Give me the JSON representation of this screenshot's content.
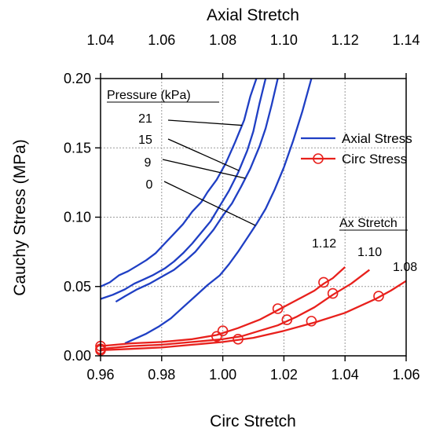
{
  "chart_data": {
    "type": "line",
    "xlabel": "Circ Stretch",
    "x2label": "Axial Stretch",
    "ylabel": "Cauchy Stress (MPa)",
    "xlim": [
      0.96,
      1.06
    ],
    "x2lim": [
      1.04,
      1.14
    ],
    "ylim": [
      0.0,
      0.2
    ],
    "xticks": [
      0.96,
      0.98,
      1.0,
      1.02,
      1.04,
      1.06
    ],
    "x2ticks": [
      1.04,
      1.06,
      1.08,
      1.1,
      1.12,
      1.14
    ],
    "yticks": [
      0.0,
      0.05,
      0.1,
      0.15,
      0.2
    ],
    "xtick_labels": [
      "0.96",
      "0.98",
      "1.00",
      "1.02",
      "1.04",
      "1.06"
    ],
    "x2tick_labels": [
      "1.04",
      "1.06",
      "1.08",
      "1.10",
      "1.12",
      "1.14"
    ],
    "ytick_labels": [
      "0.00",
      "0.05",
      "0.10",
      "0.15",
      "0.20"
    ],
    "grid": true,
    "legend": {
      "placement": "right",
      "entries": [
        {
          "label": "Axial Stress",
          "color": "#1f3fc4",
          "marker": "none"
        },
        {
          "label": "Circ Stress",
          "color": "#e8201c",
          "marker": "open-circle"
        }
      ]
    },
    "annotations": {
      "pressure_title": "Pressure (kPa)",
      "pressure_labels": [
        {
          "text": "21",
          "points_to": 1.0863
        },
        {
          "text": "15",
          "points_to": 1.0853
        },
        {
          "text": "9",
          "points_to": 1.0874
        },
        {
          "text": "0",
          "points_to": 1.0907
        }
      ],
      "stretch_title": "Ax Stretch",
      "stretch_labels": [
        "1.12",
        "1.10",
        "1.08"
      ]
    },
    "series": [
      {
        "name": "21",
        "group": "Axial Stress",
        "axis": "top",
        "color": "#1f3fc4",
        "x": [
          1.04,
          1.043,
          1.046,
          1.049,
          1.052,
          1.055,
          1.058,
          1.061,
          1.064,
          1.067,
          1.07,
          1.073,
          1.075,
          1.078,
          1.081,
          1.084,
          1.087,
          1.089,
          1.091
        ],
        "y": [
          0.05,
          0.053,
          0.058,
          0.061,
          0.065,
          0.069,
          0.074,
          0.081,
          0.088,
          0.095,
          0.104,
          0.111,
          0.118,
          0.127,
          0.139,
          0.154,
          0.17,
          0.187,
          0.2
        ]
      },
      {
        "name": "15",
        "group": "Axial Stress",
        "axis": "top",
        "color": "#1f3fc4",
        "x": [
          1.04,
          1.044,
          1.048,
          1.051,
          1.054,
          1.057,
          1.061,
          1.064,
          1.067,
          1.07,
          1.073,
          1.076,
          1.079,
          1.082,
          1.085,
          1.088,
          1.09,
          1.092,
          1.094
        ],
        "y": [
          0.041,
          0.044,
          0.048,
          0.052,
          0.055,
          0.058,
          0.063,
          0.068,
          0.074,
          0.081,
          0.089,
          0.097,
          0.108,
          0.119,
          0.132,
          0.148,
          0.162,
          0.182,
          0.2
        ]
      },
      {
        "name": "9",
        "group": "Axial Stress",
        "axis": "top",
        "color": "#1f3fc4",
        "x": [
          1.045,
          1.048,
          1.052,
          1.056,
          1.06,
          1.064,
          1.068,
          1.071,
          1.074,
          1.077,
          1.08,
          1.083,
          1.086,
          1.089,
          1.092,
          1.094,
          1.096,
          1.098
        ],
        "y": [
          0.039,
          0.043,
          0.048,
          0.052,
          0.057,
          0.062,
          0.069,
          0.075,
          0.083,
          0.091,
          0.101,
          0.11,
          0.122,
          0.135,
          0.151,
          0.164,
          0.181,
          0.2
        ]
      },
      {
        "name": "0",
        "group": "Axial Stress",
        "axis": "top",
        "color": "#1f3fc4",
        "x": [
          1.048,
          1.051,
          1.055,
          1.059,
          1.063,
          1.067,
          1.071,
          1.075,
          1.079,
          1.082,
          1.085,
          1.088,
          1.091,
          1.094,
          1.097,
          1.1,
          1.103,
          1.106,
          1.109
        ],
        "y": [
          0.009,
          0.012,
          0.016,
          0.021,
          0.027,
          0.035,
          0.043,
          0.051,
          0.058,
          0.066,
          0.075,
          0.085,
          0.095,
          0.106,
          0.12,
          0.136,
          0.155,
          0.176,
          0.2
        ]
      },
      {
        "name": "1.12",
        "group": "Circ Stress",
        "axis": "bottom",
        "color": "#e8201c",
        "x": [
          0.96,
          0.97,
          0.98,
          0.99,
          0.998,
          1.005,
          1.012,
          1.018,
          1.024,
          1.03,
          1.033,
          1.036,
          1.04
        ],
        "y": [
          0.007,
          0.009,
          0.01,
          0.012,
          0.015,
          0.02,
          0.026,
          0.033,
          0.04,
          0.047,
          0.052,
          0.056,
          0.064
        ]
      },
      {
        "name": "1.10",
        "group": "Circ Stress",
        "axis": "bottom",
        "color": "#e8201c",
        "x": [
          0.96,
          0.97,
          0.98,
          0.99,
          1.0,
          1.006,
          1.012,
          1.018,
          1.024,
          1.03,
          1.036,
          1.042,
          1.048
        ],
        "y": [
          0.005,
          0.007,
          0.008,
          0.01,
          0.012,
          0.014,
          0.018,
          0.022,
          0.028,
          0.035,
          0.044,
          0.052,
          0.062
        ]
      },
      {
        "name": "1.08",
        "group": "Circ Stress",
        "axis": "bottom",
        "color": "#e8201c",
        "x": [
          0.96,
          0.97,
          0.98,
          0.99,
          1.0,
          1.01,
          1.02,
          1.03,
          1.04,
          1.05,
          1.055,
          1.06
        ],
        "y": [
          0.004,
          0.005,
          0.006,
          0.008,
          0.01,
          0.013,
          0.018,
          0.024,
          0.031,
          0.041,
          0.047,
          0.054
        ]
      }
    ],
    "markers": [
      {
        "series": "1.12",
        "x": 0.96,
        "y": 0.007
      },
      {
        "series": "1.12",
        "x": 1.0,
        "y": 0.018
      },
      {
        "series": "1.12",
        "x": 1.018,
        "y": 0.034
      },
      {
        "series": "1.12",
        "x": 1.033,
        "y": 0.053
      },
      {
        "series": "1.10",
        "x": 0.96,
        "y": 0.005
      },
      {
        "series": "1.10",
        "x": 0.998,
        "y": 0.014
      },
      {
        "series": "1.10",
        "x": 1.021,
        "y": 0.026
      },
      {
        "series": "1.10",
        "x": 1.036,
        "y": 0.045
      },
      {
        "series": "1.08",
        "x": 0.96,
        "y": 0.004
      },
      {
        "series": "1.08",
        "x": 1.005,
        "y": 0.012
      },
      {
        "series": "1.08",
        "x": 1.029,
        "y": 0.025
      },
      {
        "series": "1.08",
        "x": 1.051,
        "y": 0.043
      }
    ]
  }
}
